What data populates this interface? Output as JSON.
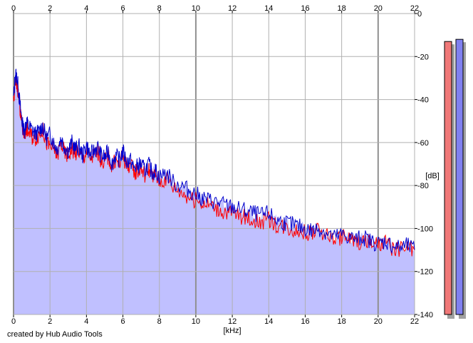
{
  "chart_data": {
    "type": "line",
    "title": "",
    "xlabel": "[kHz]",
    "ylabel": "[dB]",
    "xlim": [
      0,
      22
    ],
    "ylim": [
      -140,
      0
    ],
    "x_ticks": [
      0,
      2,
      4,
      6,
      8,
      10,
      12,
      14,
      16,
      18,
      20,
      22
    ],
    "y_ticks": [
      0,
      -20,
      -40,
      -60,
      -80,
      -100,
      -120,
      -140
    ],
    "grid": true,
    "fill_color": "#c0c0ff",
    "series": [
      {
        "color": "#0000cc",
        "x": [
          0,
          0.1,
          0.2,
          0.3,
          0.4,
          0.5,
          0.6,
          0.7,
          0.8,
          1.0,
          1.2,
          1.4,
          1.6,
          1.8,
          2.0,
          2.2,
          2.4,
          2.6,
          2.8,
          3.0,
          3.2,
          3.4,
          3.6,
          3.8,
          4.0,
          4.2,
          4.4,
          4.6,
          4.8,
          5.0,
          5.2,
          5.4,
          5.6,
          5.8,
          6.0,
          6.2,
          6.4,
          6.6,
          6.8,
          7.0,
          7.2,
          7.4,
          7.6,
          7.8,
          8.0,
          8.4,
          8.8,
          9.2,
          9.6,
          10.0,
          10.4,
          10.8,
          11.2,
          11.6,
          12.0,
          12.4,
          12.8,
          13.2,
          13.6,
          14.0,
          14.4,
          14.8,
          15.2,
          15.6,
          16.0,
          16.4,
          16.8,
          17.2,
          17.6,
          18.0,
          18.4,
          18.8,
          19.2,
          19.6,
          20.0,
          20.4,
          20.8,
          21.2,
          21.6,
          22.0
        ],
        "values": [
          -40,
          -28,
          -30,
          -38,
          -46,
          -52,
          -55,
          -50,
          -52,
          -54,
          -56,
          -55,
          -52,
          -58,
          -56,
          -60,
          -63,
          -58,
          -62,
          -64,
          -60,
          -63,
          -62,
          -66,
          -61,
          -66,
          -64,
          -62,
          -66,
          -67,
          -64,
          -70,
          -66,
          -68,
          -64,
          -69,
          -68,
          -72,
          -71,
          -70,
          -73,
          -70,
          -74,
          -73,
          -76,
          -74,
          -79,
          -80,
          -82,
          -84,
          -86,
          -87,
          -88,
          -89,
          -90,
          -91,
          -92,
          -93,
          -94,
          -93,
          -96,
          -97,
          -98,
          -99,
          -100,
          -101,
          -100,
          -102,
          -104,
          -103,
          -104,
          -105,
          -104,
          -106,
          -107,
          -106,
          -108,
          -109,
          -108,
          -110
        ]
      },
      {
        "color": "#ff0000",
        "x": [
          0,
          0.1,
          0.2,
          0.3,
          0.4,
          0.5,
          0.6,
          0.7,
          0.8,
          1.0,
          1.2,
          1.4,
          1.6,
          1.8,
          2.0,
          2.2,
          2.4,
          2.6,
          2.8,
          3.0,
          3.2,
          3.4,
          3.6,
          3.8,
          4.0,
          4.2,
          4.4,
          4.6,
          4.8,
          5.0,
          5.2,
          5.4,
          5.6,
          5.8,
          6.0,
          6.2,
          6.4,
          6.6,
          6.8,
          7.0,
          7.2,
          7.4,
          7.6,
          7.8,
          8.0,
          8.4,
          8.8,
          9.2,
          9.6,
          10.0,
          10.4,
          10.8,
          11.2,
          11.6,
          12.0,
          12.4,
          12.8,
          13.2,
          13.6,
          14.0,
          14.4,
          14.8,
          15.2,
          15.6,
          16.0,
          16.4,
          16.8,
          17.2,
          17.6,
          18.0,
          18.4,
          18.8,
          19.2,
          19.6,
          20.0,
          20.4,
          20.8,
          21.2,
          21.6,
          22.0
        ],
        "values": [
          -42,
          -32,
          -33,
          -40,
          -48,
          -54,
          -56,
          -53,
          -55,
          -57,
          -58,
          -56,
          -54,
          -60,
          -62,
          -63,
          -66,
          -60,
          -65,
          -66,
          -63,
          -65,
          -64,
          -68,
          -64,
          -67,
          -66,
          -64,
          -68,
          -69,
          -66,
          -72,
          -68,
          -70,
          -66,
          -71,
          -70,
          -74,
          -73,
          -72,
          -75,
          -72,
          -76,
          -75,
          -78,
          -77,
          -81,
          -83,
          -85,
          -87,
          -88,
          -89,
          -91,
          -92,
          -93,
          -94,
          -95,
          -96,
          -97,
          -96,
          -98,
          -99,
          -100,
          -101,
          -102,
          -102,
          -101,
          -103,
          -105,
          -104,
          -105,
          -106,
          -106,
          -107,
          -108,
          -107,
          -109,
          -110,
          -109,
          -110
        ]
      }
    ],
    "level_meters": [
      {
        "color": "#f07878",
        "value_db": -13
      },
      {
        "color": "#8080f0",
        "value_db": -12
      }
    ]
  },
  "credit": "created by Hub Audio Tools"
}
